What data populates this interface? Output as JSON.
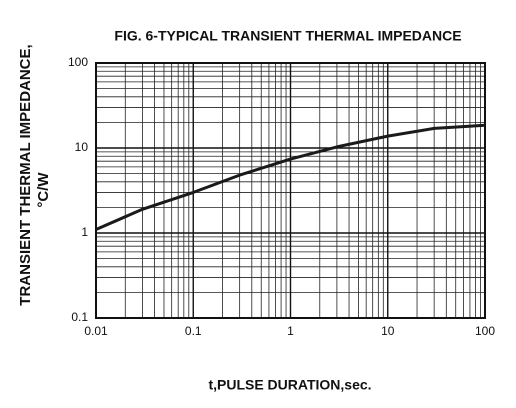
{
  "chart_data": {
    "type": "line",
    "title": "FIG. 6-TYPICAL TRANSIENT THERMAL IMPEDANCE",
    "xlabel": "t,PULSE DURATION,sec.",
    "ylabel": [
      "TRANSIENT THERMAL IMPEDANCE,",
      "°C/W"
    ],
    "x": [
      0.01,
      0.03,
      0.1,
      0.3,
      1,
      3,
      10,
      30,
      100
    ],
    "values": [
      1.1,
      1.9,
      3,
      4.8,
      7.4,
      10.3,
      13.8,
      17,
      18.5
    ],
    "color": "#1a1a1a",
    "xscale": "log",
    "yscale": "log",
    "xlim": [
      0.01,
      100
    ],
    "ylim": [
      0.1,
      100
    ],
    "xticks": [
      0.01,
      0.1,
      1,
      10,
      100
    ],
    "yticks": [
      0.1,
      1,
      10,
      100
    ],
    "grid": true,
    "minor_grid": true
  }
}
